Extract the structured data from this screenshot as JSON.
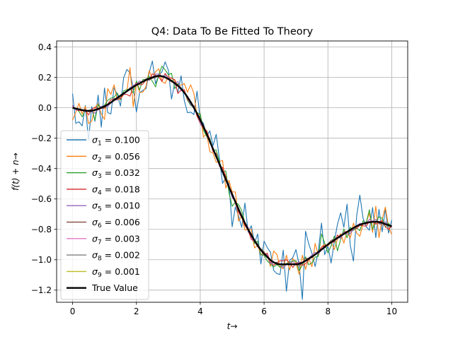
{
  "chart_data": {
    "type": "line",
    "title": "Q4: Data To Be Fitted To Theory",
    "xlabel": "t→",
    "ylabel": "f(t) + n→",
    "xlim": [
      -0.5,
      10.5
    ],
    "ylim": [
      -1.28,
      0.44
    ],
    "xticks": [
      0,
      2,
      4,
      6,
      8,
      10
    ],
    "yticks": [
      -1.2,
      -1.0,
      -0.8,
      -0.6,
      -0.4,
      -0.2,
      0.0,
      0.2,
      0.4
    ],
    "xtick_labels": [
      "0",
      "2",
      "4",
      "6",
      "8",
      "10"
    ],
    "ytick_labels": [
      "−1.2",
      "−1.0",
      "−0.8",
      "−0.6",
      "−0.4",
      "−0.2",
      "0.0",
      "0.2",
      "0.4"
    ],
    "grid": true,
    "legend_position": "lower-left",
    "true_value": {
      "name": "True Value",
      "color": "#000000",
      "x": [
        0,
        0.5,
        1.0,
        1.5,
        2.0,
        2.5,
        2.7,
        3.0,
        3.5,
        4.0,
        4.5,
        5.0,
        5.5,
        6.0,
        6.5,
        7.0,
        7.5,
        8.0,
        8.5,
        9.0,
        9.5,
        10.0
      ],
      "y": [
        0.0,
        -0.02,
        0.01,
        0.08,
        0.15,
        0.2,
        0.21,
        0.19,
        0.1,
        -0.08,
        -0.32,
        -0.57,
        -0.8,
        -0.96,
        -1.03,
        -1.03,
        -0.98,
        -0.9,
        -0.83,
        -0.77,
        -0.75,
        -0.78
      ]
    },
    "series": [
      {
        "name": "σ₁ = 0.100",
        "sub": "1",
        "value": "0.100",
        "sigma": 0.1,
        "color": "#1f77b4"
      },
      {
        "name": "σ₂ = 0.056",
        "sub": "2",
        "value": "0.056",
        "sigma": 0.056,
        "color": "#ff7f0e"
      },
      {
        "name": "σ₃ = 0.032",
        "sub": "3",
        "value": "0.032",
        "sigma": 0.032,
        "color": "#2ca02c"
      },
      {
        "name": "σ₄ = 0.018",
        "sub": "4",
        "value": "0.018",
        "sigma": 0.018,
        "color": "#d62728"
      },
      {
        "name": "σ₅ = 0.010",
        "sub": "5",
        "value": "0.010",
        "sigma": 0.01,
        "color": "#9467bd"
      },
      {
        "name": "σ₆ = 0.006",
        "sub": "6",
        "value": "0.006",
        "sigma": 0.006,
        "color": "#8c564b"
      },
      {
        "name": "σ₇ = 0.003",
        "sub": "7",
        "value": "0.003",
        "sigma": 0.003,
        "color": "#e377c2"
      },
      {
        "name": "σ₈ = 0.002",
        "sub": "8",
        "value": "0.002",
        "sigma": 0.002,
        "color": "#7f7f7f"
      },
      {
        "name": "σ₉ = 0.001",
        "sub": "9",
        "value": "0.001",
        "sigma": 0.001,
        "color": "#bcbd22"
      }
    ]
  }
}
